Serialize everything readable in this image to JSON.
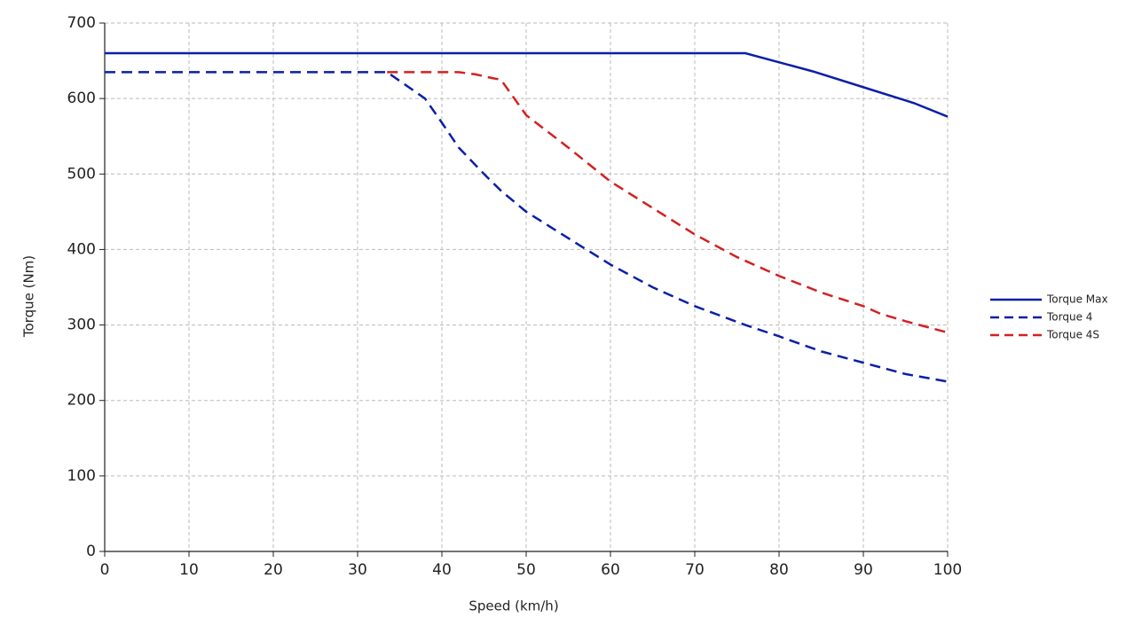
{
  "chart_data": {
    "type": "line",
    "x_label": "Speed (km/h)",
    "y_label": "Torque (Nm)",
    "xlim": [
      0,
      100
    ],
    "ylim": [
      0,
      700
    ],
    "xticks": [
      0,
      10,
      20,
      30,
      40,
      50,
      60,
      70,
      80,
      90,
      100
    ],
    "yticks": [
      0,
      100,
      200,
      300,
      400,
      500,
      600,
      700
    ],
    "grid": true,
    "legend": "right",
    "series": [
      {
        "name": "Torque Max",
        "color": "#0a1fa8",
        "style": "solid",
        "x": [
          0,
          76,
          84,
          90,
          96,
          100
        ],
        "values": [
          660,
          660,
          636,
          615,
          594,
          576
        ]
      },
      {
        "name": "Torque 4",
        "color": "#0a1fa8",
        "style": "dashed",
        "x": [
          0,
          33.5,
          38,
          40,
          42,
          45,
          47,
          50,
          55,
          60,
          65,
          70,
          76,
          80,
          85,
          90,
          95,
          100
        ],
        "values": [
          635,
          635,
          600,
          568,
          535,
          500,
          478,
          450,
          415,
          380,
          350,
          325,
          300,
          285,
          265,
          250,
          235,
          225
        ]
      },
      {
        "name": "Torque 4S",
        "color": "#d42020",
        "style": "dashed",
        "x": [
          33.5,
          42,
          44,
          46,
          47,
          50,
          55,
          60,
          65,
          70,
          75,
          80,
          85,
          90,
          92,
          95,
          100
        ],
        "values": [
          635,
          635,
          632,
          627,
          625,
          578,
          535,
          490,
          455,
          420,
          390,
          365,
          343,
          325,
          315,
          305,
          290
        ]
      }
    ]
  }
}
